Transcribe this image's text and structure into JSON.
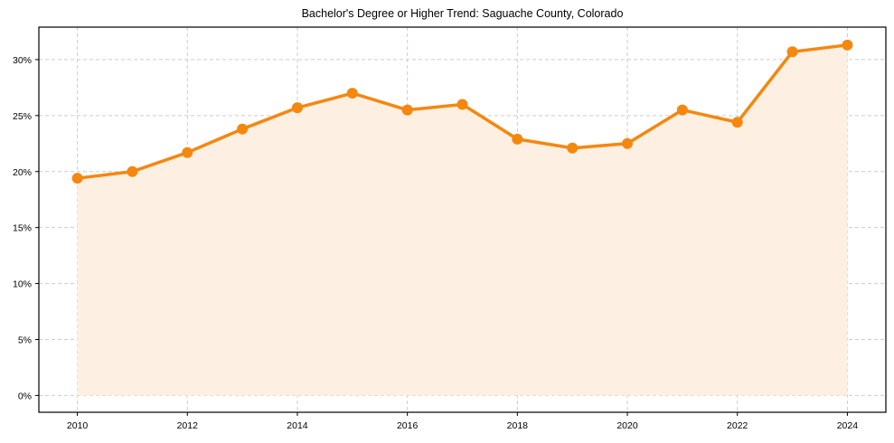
{
  "chart_data": {
    "type": "line",
    "title": "Bachelor's Degree or Higher Trend: Saguache County, Colorado",
    "xlabel": "",
    "ylabel": "",
    "x": [
      2010,
      2011,
      2012,
      2013,
      2014,
      2015,
      2016,
      2017,
      2018,
      2019,
      2020,
      2021,
      2022,
      2023,
      2024
    ],
    "series": [
      {
        "name": "Bachelor's Degree or Higher",
        "values": [
          19.4,
          20.0,
          21.7,
          23.8,
          25.7,
          27.0,
          25.5,
          26.0,
          22.9,
          22.1,
          22.5,
          25.5,
          24.4,
          30.7,
          31.3
        ],
        "color": "#f5870f",
        "fill": "#fdf0e2",
        "marker": "circle"
      }
    ],
    "x_ticks": [
      "2010",
      "2012",
      "2014",
      "2016",
      "2018",
      "2020",
      "2022",
      "2024"
    ],
    "y_ticks": [
      "0%",
      "5%",
      "10%",
      "15%",
      "20%",
      "25%",
      "30%"
    ],
    "xlim": [
      2009.3,
      2024.7
    ],
    "ylim": [
      -1.5,
      32.9
    ],
    "grid": true,
    "legend": null
  }
}
